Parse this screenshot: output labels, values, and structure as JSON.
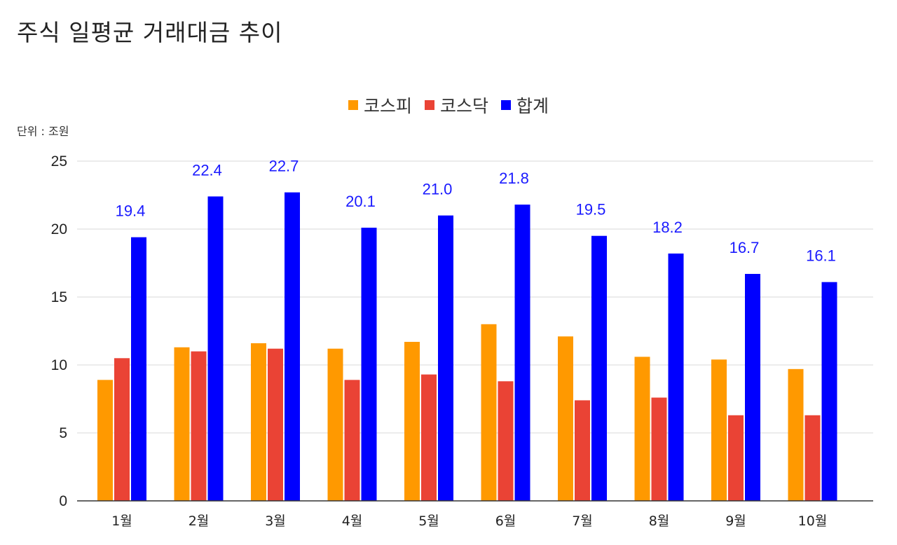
{
  "chart_data": {
    "type": "bar",
    "title": "주식 일평균 거래대금 추이",
    "unit_label": "단위 : 조원",
    "categories": [
      "1월",
      "2월",
      "3월",
      "4월",
      "5월",
      "6월",
      "7월",
      "8월",
      "9월",
      "10월"
    ],
    "series": [
      {
        "name": "코스피",
        "color": "#ff9900",
        "values": [
          8.9,
          11.3,
          11.6,
          11.2,
          11.7,
          13.0,
          12.1,
          10.6,
          10.4,
          9.7
        ]
      },
      {
        "name": "코스닥",
        "color": "#ea4335",
        "values": [
          10.5,
          11.0,
          11.2,
          8.9,
          9.3,
          8.8,
          7.4,
          7.6,
          6.3,
          6.3
        ]
      },
      {
        "name": "합계",
        "color": "#0000ff",
        "values": [
          19.4,
          22.4,
          22.7,
          20.1,
          21.0,
          21.8,
          19.5,
          18.2,
          16.7,
          16.1
        ]
      }
    ],
    "data_labels": {
      "series": "합계",
      "color": "#1a1aff",
      "values": [
        "19.4",
        "22.4",
        "22.7",
        "20.1",
        "21.0",
        "21.8",
        "19.5",
        "18.2",
        "16.7",
        "16.1"
      ]
    },
    "ylim": [
      0,
      25
    ],
    "yticks": [
      0,
      5,
      10,
      15,
      20,
      25
    ],
    "grid": true,
    "legend_position": "top-center",
    "xlabel": "",
    "ylabel": ""
  }
}
